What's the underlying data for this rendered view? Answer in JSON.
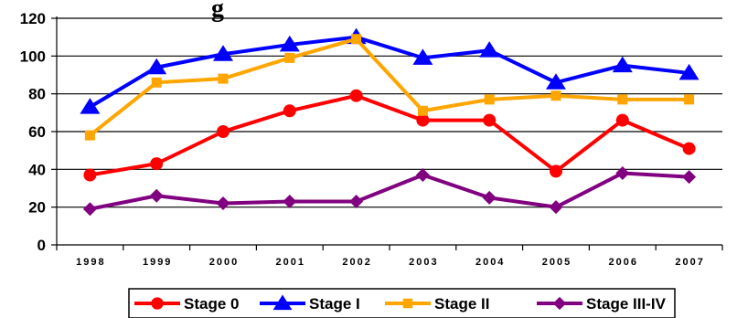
{
  "chart_data": {
    "type": "line",
    "title_fragment": "g",
    "x": [
      "1998",
      "1999",
      "2000",
      "2001",
      "2002",
      "2003",
      "2004",
      "2005",
      "2006",
      "2007"
    ],
    "ylim": [
      0,
      120
    ],
    "yticks": [
      "0",
      "20",
      "40",
      "60",
      "80",
      "100",
      "120"
    ],
    "grid": true,
    "legend_position": "bottom",
    "series": [
      {
        "name": "Stage 0",
        "color": "#ff0000",
        "marker": "circle",
        "values": [
          37,
          43,
          60,
          71,
          79,
          66,
          66,
          39,
          66,
          51
        ]
      },
      {
        "name": "Stage I",
        "color": "#0000ff",
        "marker": "triangle",
        "values": [
          73,
          94,
          101,
          106,
          110,
          99,
          103,
          86,
          95,
          91
        ]
      },
      {
        "name": "Stage II",
        "color": "#ffa500",
        "marker": "square",
        "values": [
          58,
          86,
          88,
          99,
          109,
          71,
          77,
          79,
          77,
          77
        ]
      },
      {
        "name": "Stage III-IV",
        "color": "#800080",
        "marker": "diamond",
        "values": [
          19,
          26,
          22,
          23,
          23,
          37,
          25,
          20,
          38,
          36
        ]
      }
    ]
  }
}
